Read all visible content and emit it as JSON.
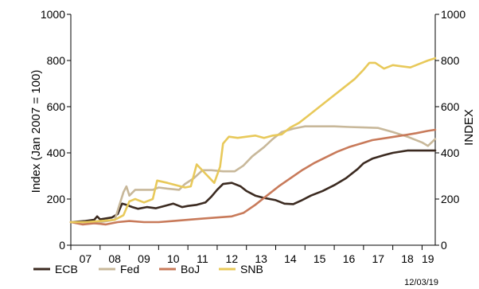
{
  "chart_data": {
    "type": "line",
    "ylabel_left": "Index (Jan 2007 = 100)",
    "ylabel_right": "INDEX",
    "ylim": [
      0,
      1000
    ],
    "y_ticks": [
      0,
      200,
      400,
      600,
      800,
      1000
    ],
    "x_range": [
      2007.0,
      2019.45
    ],
    "x_ticks": [
      {
        "label": "07",
        "x": 2007.5
      },
      {
        "label": "08",
        "x": 2008.5
      },
      {
        "label": "09",
        "x": 2009.5
      },
      {
        "label": "10",
        "x": 2010.5
      },
      {
        "label": "11",
        "x": 2011.5
      },
      {
        "label": "12",
        "x": 2012.5
      },
      {
        "label": "13",
        "x": 2013.5
      },
      {
        "label": "14",
        "x": 2014.5
      },
      {
        "label": "15",
        "x": 2015.5
      },
      {
        "label": "16",
        "x": 2016.5
      },
      {
        "label": "17",
        "x": 2017.5
      },
      {
        "label": "18",
        "x": 2018.5
      },
      {
        "label": "19",
        "x": 2019.2
      }
    ],
    "grid": false,
    "legend_position": "bottom-left",
    "date_note": "12/03/19",
    "series": [
      {
        "name": "ECB",
        "color": "#3b2a20",
        "points": [
          [
            2007.0,
            100
          ],
          [
            2007.5,
            105
          ],
          [
            2007.8,
            110
          ],
          [
            2007.9,
            125
          ],
          [
            2008.0,
            112
          ],
          [
            2008.4,
            120
          ],
          [
            2008.6,
            135
          ],
          [
            2008.75,
            180
          ],
          [
            2008.9,
            175
          ],
          [
            2009.1,
            165
          ],
          [
            2009.3,
            158
          ],
          [
            2009.6,
            165
          ],
          [
            2009.9,
            160
          ],
          [
            2010.2,
            170
          ],
          [
            2010.5,
            180
          ],
          [
            2010.8,
            165
          ],
          [
            2011.0,
            170
          ],
          [
            2011.3,
            175
          ],
          [
            2011.6,
            185
          ],
          [
            2011.8,
            210
          ],
          [
            2012.0,
            240
          ],
          [
            2012.2,
            265
          ],
          [
            2012.5,
            270
          ],
          [
            2012.8,
            255
          ],
          [
            2013.0,
            235
          ],
          [
            2013.3,
            215
          ],
          [
            2013.6,
            205
          ],
          [
            2014.0,
            195
          ],
          [
            2014.3,
            180
          ],
          [
            2014.6,
            178
          ],
          [
            2014.9,
            195
          ],
          [
            2015.2,
            215
          ],
          [
            2015.6,
            235
          ],
          [
            2016.0,
            260
          ],
          [
            2016.4,
            290
          ],
          [
            2016.8,
            330
          ],
          [
            2017.0,
            355
          ],
          [
            2017.3,
            375
          ],
          [
            2017.7,
            390
          ],
          [
            2018.0,
            400
          ],
          [
            2018.5,
            410
          ],
          [
            2019.0,
            410
          ],
          [
            2019.45,
            410
          ]
        ]
      },
      {
        "name": "Fed",
        "color": "#c8b89a",
        "points": [
          [
            2007.0,
            100
          ],
          [
            2007.5,
            100
          ],
          [
            2008.0,
            100
          ],
          [
            2008.5,
            110
          ],
          [
            2008.8,
            230
          ],
          [
            2008.9,
            255
          ],
          [
            2009.0,
            215
          ],
          [
            2009.2,
            240
          ],
          [
            2009.5,
            240
          ],
          [
            2009.8,
            240
          ],
          [
            2010.0,
            250
          ],
          [
            2010.3,
            245
          ],
          [
            2010.7,
            240
          ],
          [
            2010.9,
            265
          ],
          [
            2011.2,
            290
          ],
          [
            2011.5,
            325
          ],
          [
            2011.8,
            325
          ],
          [
            2012.2,
            320
          ],
          [
            2012.6,
            320
          ],
          [
            2012.9,
            345
          ],
          [
            2013.2,
            385
          ],
          [
            2013.6,
            425
          ],
          [
            2013.9,
            460
          ],
          [
            2014.2,
            490
          ],
          [
            2014.6,
            505
          ],
          [
            2015.0,
            515
          ],
          [
            2015.5,
            515
          ],
          [
            2016.0,
            515
          ],
          [
            2016.5,
            512
          ],
          [
            2017.0,
            510
          ],
          [
            2017.5,
            508
          ],
          [
            2018.0,
            490
          ],
          [
            2018.5,
            470
          ],
          [
            2019.0,
            445
          ],
          [
            2019.2,
            430
          ],
          [
            2019.45,
            460
          ]
        ]
      },
      {
        "name": "BoJ",
        "color": "#c87a5a",
        "points": [
          [
            2007.0,
            100
          ],
          [
            2007.4,
            90
          ],
          [
            2007.8,
            95
          ],
          [
            2008.2,
            90
          ],
          [
            2008.6,
            100
          ],
          [
            2009.0,
            105
          ],
          [
            2009.5,
            100
          ],
          [
            2010.0,
            100
          ],
          [
            2010.5,
            105
          ],
          [
            2011.0,
            110
          ],
          [
            2011.5,
            115
          ],
          [
            2012.0,
            120
          ],
          [
            2012.5,
            125
          ],
          [
            2012.9,
            140
          ],
          [
            2013.3,
            175
          ],
          [
            2013.7,
            215
          ],
          [
            2014.1,
            255
          ],
          [
            2014.5,
            290
          ],
          [
            2014.9,
            325
          ],
          [
            2015.3,
            355
          ],
          [
            2015.7,
            380
          ],
          [
            2016.1,
            405
          ],
          [
            2016.5,
            425
          ],
          [
            2016.9,
            440
          ],
          [
            2017.3,
            455
          ],
          [
            2017.8,
            465
          ],
          [
            2018.3,
            475
          ],
          [
            2018.8,
            485
          ],
          [
            2019.2,
            495
          ],
          [
            2019.45,
            500
          ]
        ]
      },
      {
        "name": "SNB",
        "color": "#e8c95a",
        "points": [
          [
            2007.0,
            100
          ],
          [
            2007.5,
            100
          ],
          [
            2008.0,
            105
          ],
          [
            2008.5,
            110
          ],
          [
            2008.8,
            130
          ],
          [
            2009.0,
            190
          ],
          [
            2009.2,
            200
          ],
          [
            2009.5,
            185
          ],
          [
            2009.8,
            200
          ],
          [
            2009.95,
            280
          ],
          [
            2010.3,
            270
          ],
          [
            2010.6,
            260
          ],
          [
            2010.9,
            250
          ],
          [
            2011.1,
            255
          ],
          [
            2011.3,
            350
          ],
          [
            2011.6,
            310
          ],
          [
            2011.9,
            270
          ],
          [
            2012.1,
            340
          ],
          [
            2012.2,
            440
          ],
          [
            2012.4,
            470
          ],
          [
            2012.7,
            465
          ],
          [
            2013.0,
            470
          ],
          [
            2013.3,
            475
          ],
          [
            2013.6,
            465
          ],
          [
            2013.9,
            475
          ],
          [
            2014.2,
            480
          ],
          [
            2014.5,
            510
          ],
          [
            2014.8,
            530
          ],
          [
            2015.1,
            560
          ],
          [
            2015.5,
            600
          ],
          [
            2015.9,
            640
          ],
          [
            2016.3,
            680
          ],
          [
            2016.7,
            720
          ],
          [
            2017.0,
            760
          ],
          [
            2017.2,
            790
          ],
          [
            2017.4,
            790
          ],
          [
            2017.7,
            765
          ],
          [
            2018.0,
            780
          ],
          [
            2018.3,
            775
          ],
          [
            2018.6,
            770
          ],
          [
            2018.9,
            785
          ],
          [
            2019.2,
            800
          ],
          [
            2019.45,
            810
          ]
        ]
      }
    ]
  }
}
